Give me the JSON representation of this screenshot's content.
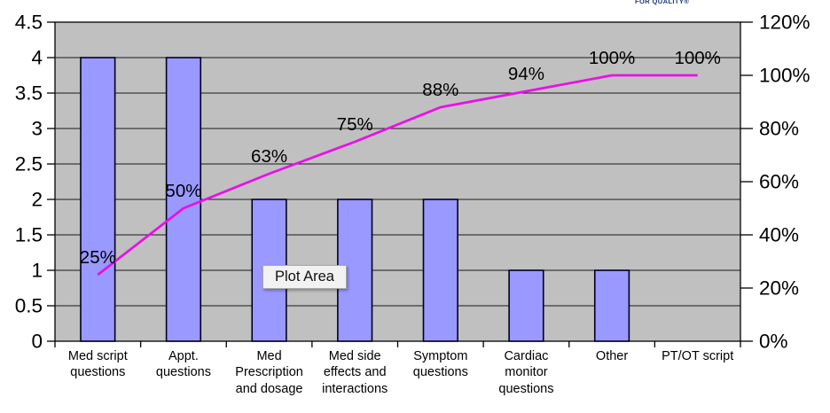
{
  "logo": {
    "text": "FOR QUALITY®",
    "color": "#1d3a6e"
  },
  "tooltip": {
    "text": "Plot Area"
  },
  "chart_data": {
    "type": "bar",
    "subtype": "pareto",
    "title": "",
    "categories": [
      "Med script questions",
      "Appt. questions",
      "Med Prescription and dosage",
      "Med side effects and interactions",
      "Symptom questions",
      "Cardiac monitor questions",
      "Other",
      "PT/OT script"
    ],
    "series": [
      {
        "name": "count",
        "type": "bar",
        "values": [
          4,
          4,
          2,
          2,
          2,
          1,
          1,
          0
        ],
        "color": "#9999ff",
        "border_color": "#00001f"
      },
      {
        "name": "cumulative-percent",
        "type": "line",
        "values": [
          25,
          50,
          63,
          75,
          88,
          94,
          100,
          100
        ],
        "labels": [
          "25%",
          "50%",
          "63%",
          "75%",
          "88%",
          "94%",
          "100%",
          "100%"
        ],
        "color": "#e910e9"
      }
    ],
    "left_axis": {
      "min": 0,
      "max": 4.5,
      "ticks": [
        {
          "value": 0,
          "label": "0"
        },
        {
          "value": 0.5,
          "label": "0.5"
        },
        {
          "value": 1,
          "label": "1"
        },
        {
          "value": 1.5,
          "label": "1.5"
        },
        {
          "value": 2,
          "label": "2"
        },
        {
          "value": 2.5,
          "label": "2.5"
        },
        {
          "value": 3,
          "label": "3"
        },
        {
          "value": 3.5,
          "label": "3.5"
        },
        {
          "value": 4,
          "label": "4"
        },
        {
          "value": 4.5,
          "label": "4.5"
        }
      ]
    },
    "right_axis": {
      "min": 0,
      "max": 120,
      "ticks": [
        {
          "value": 0,
          "label": "0%"
        },
        {
          "value": 20,
          "label": "20%"
        },
        {
          "value": 40,
          "label": "40%"
        },
        {
          "value": 60,
          "label": "60%"
        },
        {
          "value": 80,
          "label": "80%"
        },
        {
          "value": 100,
          "label": "100%"
        },
        {
          "value": 120,
          "label": "120%"
        }
      ]
    },
    "plot_bg": "#c0c0c0",
    "grid": true,
    "legend_position": "none"
  }
}
